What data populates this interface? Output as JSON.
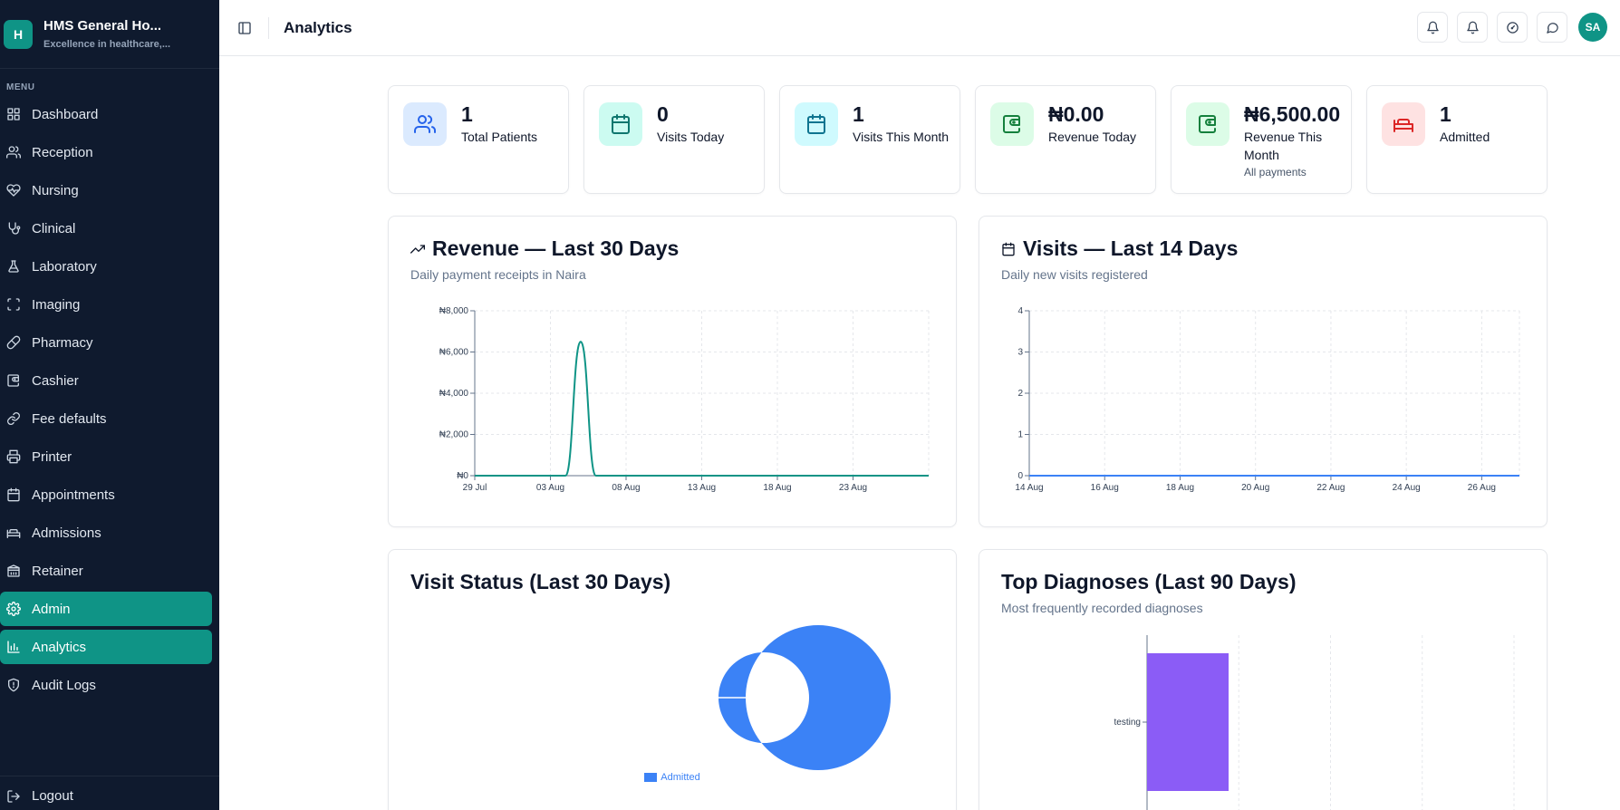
{
  "app": {
    "name": "HMS General Ho...",
    "tagline": "Excellence in healthcare,...",
    "logo_letter": "H"
  },
  "sidebar": {
    "menu_label": "MENU",
    "items": [
      {
        "label": "Dashboard",
        "icon": "grid-icon",
        "active": false
      },
      {
        "label": "Reception",
        "icon": "users-icon",
        "active": false
      },
      {
        "label": "Nursing",
        "icon": "heart-pulse-icon",
        "active": false
      },
      {
        "label": "Clinical",
        "icon": "stethoscope-icon",
        "active": false
      },
      {
        "label": "Laboratory",
        "icon": "flask-icon",
        "active": false
      },
      {
        "label": "Imaging",
        "icon": "scan-icon",
        "active": false
      },
      {
        "label": "Pharmacy",
        "icon": "pill-icon",
        "active": false
      },
      {
        "label": "Cashier",
        "icon": "wallet-icon",
        "active": false
      },
      {
        "label": "Fee defaults",
        "icon": "link-icon",
        "active": false
      },
      {
        "label": "Printer",
        "icon": "printer-icon",
        "active": false
      },
      {
        "label": "Appointments",
        "icon": "calendar-icon",
        "active": false
      },
      {
        "label": "Admissions",
        "icon": "bed-icon",
        "active": false
      },
      {
        "label": "Retainer",
        "icon": "building-icon",
        "active": false
      },
      {
        "label": "Admin",
        "icon": "gear-icon",
        "active": true
      },
      {
        "label": "Analytics",
        "icon": "bar-chart-icon",
        "active": true
      },
      {
        "label": "Audit Logs",
        "icon": "shield-icon",
        "active": false
      }
    ],
    "logout_label": "Logout"
  },
  "topbar": {
    "title": "Analytics",
    "avatar_initials": "SA",
    "action_icons": [
      "bell-icon",
      "bell-icon",
      "gauge-icon",
      "message-icon"
    ]
  },
  "stats": [
    {
      "value": "1",
      "label": "Total Patients",
      "sub": "",
      "icon": "users-icon",
      "bg": "#dbeafe",
      "color": "#2563eb"
    },
    {
      "value": "0",
      "label": "Visits Today",
      "sub": "",
      "icon": "calendar-icon",
      "bg": "#ccfbf1",
      "color": "#0f766e"
    },
    {
      "value": "1",
      "label": "Visits This Month",
      "sub": "",
      "icon": "calendar-icon",
      "bg": "#cffafe",
      "color": "#0e7490"
    },
    {
      "value": "₦0.00",
      "label": "Revenue Today",
      "sub": "",
      "icon": "wallet-icon",
      "bg": "#dcfce7",
      "color": "#15803d"
    },
    {
      "value": "₦6,500.00",
      "label": "Revenue This Month",
      "sub": "All payments",
      "icon": "wallet-icon",
      "bg": "#dcfce7",
      "color": "#15803d"
    },
    {
      "value": "1",
      "label": "Admitted",
      "sub": "",
      "icon": "bed-icon",
      "bg": "#fee2e2",
      "color": "#dc2626"
    }
  ],
  "panels": {
    "revenue": {
      "title": "Revenue — Last 30 Days",
      "subtitle": "Daily payment receipts in Naira",
      "icon": "trending-up-icon"
    },
    "visits": {
      "title": "Visits — Last 14 Days",
      "subtitle": "Daily new visits registered",
      "icon": "calendar-icon"
    },
    "status": {
      "title": "Visit Status (Last 30 Days)"
    },
    "diagnoses": {
      "title": "Top Diagnoses (Last 90 Days)",
      "subtitle": "Most frequently recorded diagnoses"
    }
  },
  "chart_data": [
    {
      "type": "line",
      "title": "Revenue — Last 30 Days",
      "subtitle": "Daily payment receipts in Naira",
      "x_tick_labels": [
        "29 Jul",
        "03 Aug",
        "08 Aug",
        "13 Aug",
        "18 Aug",
        "23 Aug"
      ],
      "y_tick_labels": [
        "₦0",
        "₦2,000",
        "₦4,000",
        "₦6,000",
        "₦8,000"
      ],
      "ylim": [
        0,
        8000
      ],
      "x": [
        "29 Jul",
        "30 Jul",
        "31 Jul",
        "01 Aug",
        "02 Aug",
        "03 Aug",
        "04 Aug",
        "05 Aug",
        "06 Aug",
        "07 Aug",
        "08 Aug",
        "09 Aug",
        "10 Aug",
        "11 Aug",
        "12 Aug",
        "13 Aug",
        "14 Aug",
        "15 Aug",
        "16 Aug",
        "17 Aug",
        "18 Aug",
        "19 Aug",
        "20 Aug",
        "21 Aug",
        "22 Aug",
        "23 Aug",
        "24 Aug",
        "25 Aug",
        "26 Aug",
        "27 Aug",
        "28 Aug"
      ],
      "values": [
        0,
        0,
        0,
        0,
        0,
        0,
        0,
        6500,
        0,
        0,
        0,
        0,
        0,
        0,
        0,
        0,
        0,
        0,
        0,
        0,
        0,
        0,
        0,
        0,
        0,
        0,
        0,
        0,
        0,
        0,
        0
      ],
      "color": "#0f9486",
      "grid": true
    },
    {
      "type": "line",
      "title": "Visits — Last 14 Days",
      "subtitle": "Daily new visits registered",
      "x_tick_labels": [
        "14 Aug",
        "16 Aug",
        "18 Aug",
        "20 Aug",
        "22 Aug",
        "24 Aug",
        "26 Aug"
      ],
      "y_tick_labels": [
        "0",
        "1",
        "2",
        "3",
        "4"
      ],
      "ylim": [
        0,
        4
      ],
      "x": [
        "14 Aug",
        "15 Aug",
        "16 Aug",
        "17 Aug",
        "18 Aug",
        "19 Aug",
        "20 Aug",
        "21 Aug",
        "22 Aug",
        "23 Aug",
        "24 Aug",
        "25 Aug",
        "26 Aug",
        "27 Aug"
      ],
      "values": [
        0,
        0,
        0,
        0,
        0,
        0,
        0,
        0,
        0,
        0,
        0,
        0,
        0,
        0
      ],
      "color": "#3b82f6",
      "grid": true
    },
    {
      "type": "pie",
      "title": "Visit Status (Last 30 Days)",
      "labels": [
        "Admitted"
      ],
      "values": [
        1
      ],
      "colors": [
        "#3b82f6"
      ],
      "legend": "bottom"
    },
    {
      "type": "bar",
      "title": "Top Diagnoses (Last 90 Days)",
      "subtitle": "Most frequently recorded diagnoses",
      "categories": [
        "testing"
      ],
      "values": [
        1
      ],
      "color": "#8b5cf6",
      "orientation": "horizontal"
    }
  ]
}
